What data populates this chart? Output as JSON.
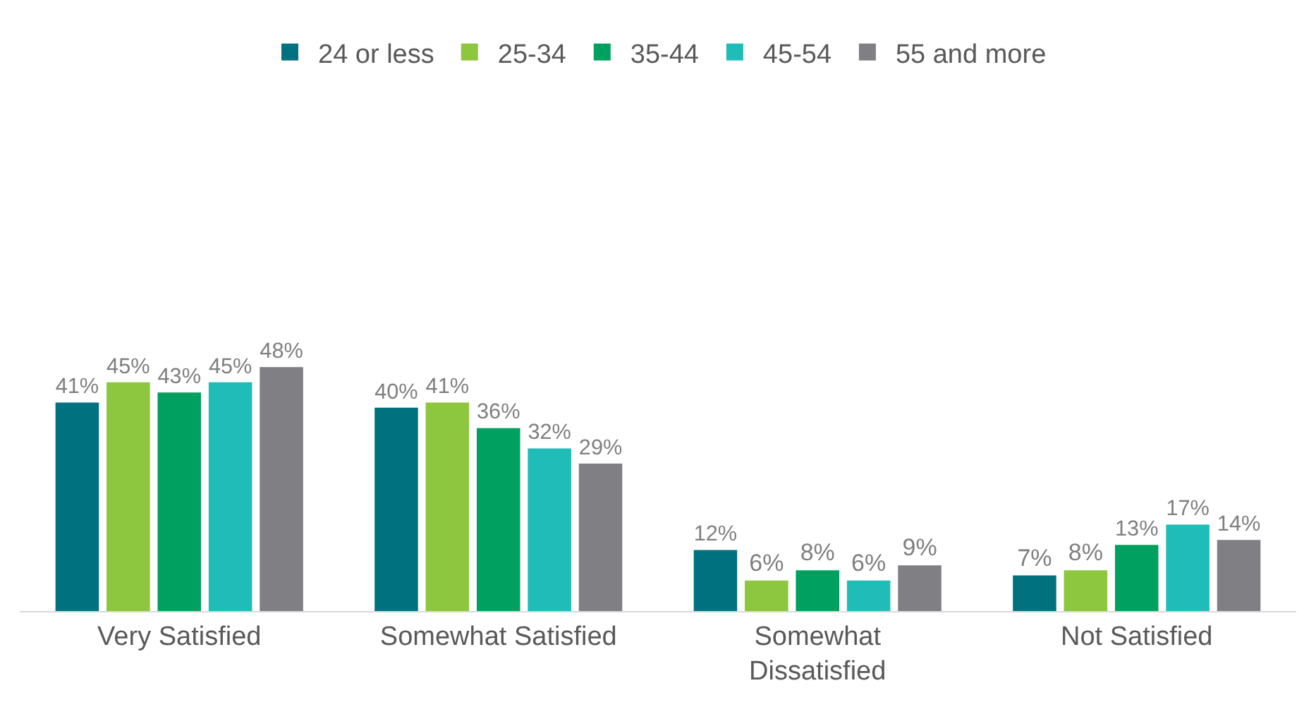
{
  "chart_data": {
    "type": "bar",
    "categories": [
      "Very Satisfied",
      "Somewhat Satisfied",
      "Somewhat Dissatisfied",
      "Not Satisfied"
    ],
    "series": [
      {
        "name": "24 or less",
        "color": "#00727f",
        "values": [
          41,
          40,
          12,
          7
        ],
        "value_labels": [
          "41%",
          "40%",
          "12%",
          "7%"
        ]
      },
      {
        "name": "25-34",
        "color": "#8dc63f",
        "values": [
          45,
          41,
          6,
          8
        ],
        "value_labels": [
          "45%",
          "41%",
          "6%",
          "8%"
        ]
      },
      {
        "name": "35-44",
        "color": "#00a060",
        "values": [
          43,
          36,
          8,
          13
        ],
        "value_labels": [
          "43%",
          "36%",
          "8%",
          "13%"
        ]
      },
      {
        "name": "45-54",
        "color": "#20bdb8",
        "values": [
          45,
          32,
          6,
          17
        ],
        "value_labels": [
          "45%",
          "32%",
          "6%",
          "17%"
        ]
      },
      {
        "name": "55 and more",
        "color": "#7f7f84",
        "values": [
          48,
          29,
          9,
          14
        ],
        "value_labels": [
          "48%",
          "29%",
          "9%",
          "14%"
        ]
      }
    ],
    "legend": "top"
  }
}
